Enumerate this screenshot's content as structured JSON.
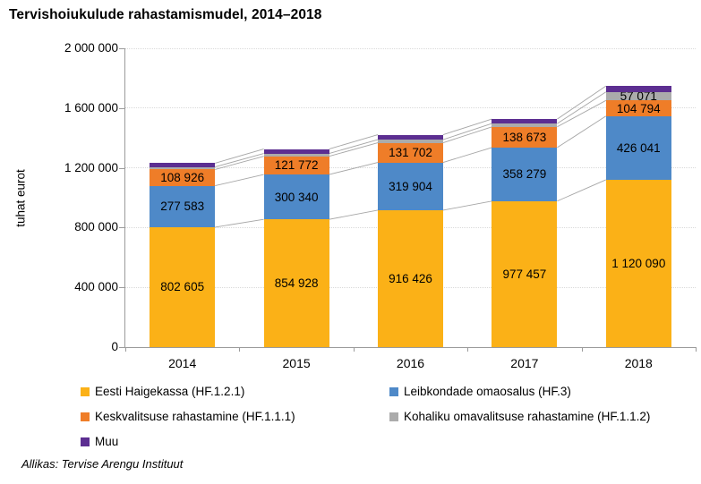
{
  "title": "Tervishoiukulude rahastamismudel, 2014–2018",
  "y_axis": {
    "label": "tuhat eurot",
    "ticks": [
      "0",
      "400 000",
      "800 000",
      "1 200 000",
      "1 600 000",
      "2 000 000"
    ]
  },
  "source": "Allikas: Tervise Arengu Instituut",
  "colors": {
    "grid": "#d9d9d9",
    "axis": "#9b9b9b",
    "connector": "#a6a6a6"
  },
  "chart_data": {
    "type": "bar",
    "stacked": true,
    "title": "Tervishoiukulude rahastamismudel, 2014–2018",
    "ylabel": "tuhat eurot",
    "ylim": [
      0,
      2000000
    ],
    "ytick_step": 400000,
    "grid": true,
    "legend_position": "bottom",
    "categories": [
      "2014",
      "2015",
      "2016",
      "2017",
      "2018"
    ],
    "series": [
      {
        "name": "Eesti Haigekassa (HF.1.2.1)",
        "color": "#FBB117",
        "values": [
          802605,
          854928,
          916426,
          977457,
          1120090
        ],
        "labels": [
          "802 605",
          "854 928",
          "916 426",
          "977 457",
          "1 120 090"
        ]
      },
      {
        "name": "Leibkondade omaosalus (HF.3)",
        "color": "#4E89C8",
        "values": [
          277583,
          300340,
          319904,
          358279,
          426041
        ],
        "labels": [
          "277 583",
          "300 340",
          "319 904",
          "358 279",
          "426 041"
        ]
      },
      {
        "name": "Keskvalitsuse rahastamine (HF.1.1.1)",
        "color": "#EF7D28",
        "values": [
          108926,
          121772,
          131702,
          138673,
          104794
        ],
        "labels": [
          "108 926",
          "121 772",
          "131 702",
          "138 673",
          "104 794"
        ]
      },
      {
        "name": "Kohaliku omavalitsuse rahastamine (HF.1.1.2)",
        "color": "#ABABAB",
        "values": [
          17000,
          19000,
          21000,
          22000,
          57071
        ],
        "labels": [
          null,
          null,
          null,
          null,
          "57 071"
        ]
      },
      {
        "name": "Muu",
        "color": "#5C2E91",
        "values": [
          25000,
          30000,
          33000,
          30000,
          40000
        ],
        "labels": [
          null,
          null,
          null,
          null,
          null
        ]
      }
    ],
    "legend_order": [
      0,
      1,
      2,
      3,
      4
    ]
  }
}
